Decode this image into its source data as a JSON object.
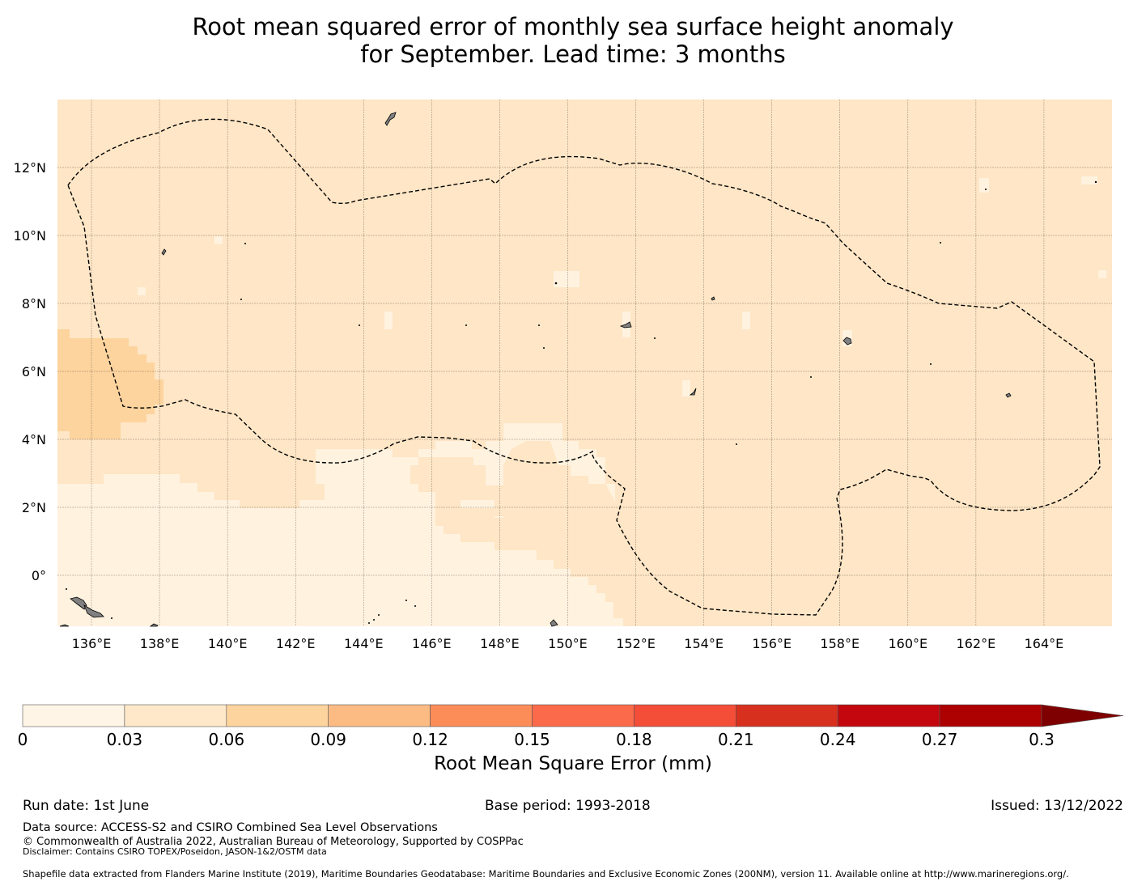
{
  "title": {
    "line1": "Root mean squared error of monthly sea surface height anomaly",
    "line2": "for September. Lead time: 3 months"
  },
  "map": {
    "lat_labels": [
      "12°N",
      "10°N",
      "8°N",
      "6°N",
      "4°N",
      "2°N",
      "0°"
    ],
    "lat_values": [
      12,
      10,
      8,
      6,
      4,
      2,
      0
    ],
    "lon_labels": [
      "136°E",
      "138°E",
      "140°E",
      "142°E",
      "144°E",
      "146°E",
      "148°E",
      "150°E",
      "152°E",
      "154°E",
      "156°E",
      "158°E",
      "160°E",
      "162°E",
      "164°E"
    ],
    "lon_values": [
      136,
      138,
      140,
      142,
      144,
      146,
      148,
      150,
      152,
      154,
      156,
      158,
      160,
      162,
      164
    ],
    "extent": {
      "lon_min": 135,
      "lon_max": 166,
      "lat_min": -1.5,
      "lat_max": 14
    },
    "colors": {
      "level_0_03": "#fff2df",
      "level_0_06": "#fee6c6",
      "level_0_09": "#fdd49e",
      "land": "#808080",
      "eez_boundary": "#000000"
    }
  },
  "colorbar": {
    "ticks": [
      "0",
      "0.03",
      "0.06",
      "0.09",
      "0.12",
      "0.15",
      "0.18",
      "0.21",
      "0.24",
      "0.27",
      "0.3"
    ],
    "colors": [
      "#fff5e6",
      "#ffe8c9",
      "#fdd49e",
      "#fdbb84",
      "#fc8d59",
      "#fb6a4a",
      "#f44d38",
      "#d7301f",
      "#c4070e",
      "#ad0000",
      "#7f0000"
    ],
    "label": "Root Mean Square Error (mm)"
  },
  "footer": {
    "run_date": "Run date: 1st June",
    "base_period": "Base period: 1993-2018",
    "issued": "Issued: 13/12/2022",
    "data_source": "Data source: ACCESS-S2 and CSIRO Combined Sea Level Observations",
    "copyright": "© Commonwealth of Australia 2022, Australian Bureau of Meteorology, Supported by COSPPac",
    "disclaimer": "Disclaimer: Contains CSIRO TOPEX/Poseidon, JASON-1&2/OSTM data",
    "shapefile": "Shapefile data extracted from Flanders Marine Institute (2019), Maritime Boundaries Geodatabase: Maritime Boundaries and Exclusive Economic Zones (200NM), version 11. Available online at http://www.marineregions.org/."
  }
}
